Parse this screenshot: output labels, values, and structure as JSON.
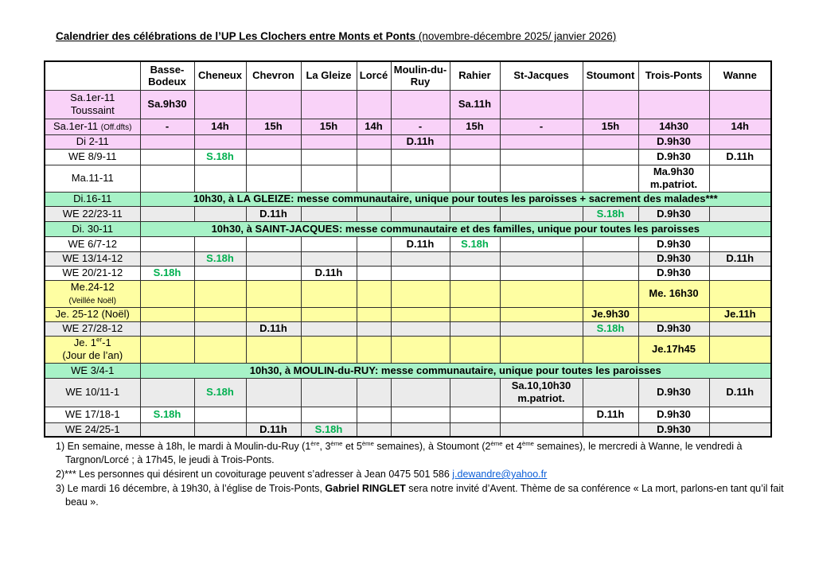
{
  "title": {
    "bold": "Calendrier des célébrations de l’UP Les Clochers entre Monts et Ponts",
    "tail": " (novembre-décembre 2025/ janvier 2026)"
  },
  "colors": {
    "pink": "#F9D2F8",
    "green_row": "#A7F2C7",
    "yellow": "#FEFEA2",
    "gray": "#EBEBEB",
    "green_text": "#00B050",
    "link": "#0B5ED7"
  },
  "table": {
    "columns": [
      "",
      "Basse-Bodeux",
      "Cheneux",
      "Chevron",
      "La Gleize",
      "Lorcé",
      "Moulin-du-Ruy",
      "Rahier",
      "St-Jacques",
      "Stoumont",
      "Trois-Ponts",
      "Wanne"
    ],
    "rows": [
      {
        "type": "pink",
        "label": [
          {
            "t": "Sa.1er-11"
          },
          {
            "t": "Toussaint",
            "br": true
          }
        ],
        "cells": [
          {
            "t": "Sa.9h30"
          },
          "",
          "",
          "",
          "",
          "",
          {
            "t": "Sa.11h"
          },
          "",
          "",
          "",
          ""
        ]
      },
      {
        "type": "pink",
        "label": [
          {
            "t": "Sa.1er-11 "
          },
          {
            "t": "(Off.dfts)",
            "small": true
          }
        ],
        "cells": [
          {
            "t": "-"
          },
          {
            "t": "14h"
          },
          {
            "t": "15h"
          },
          {
            "t": "15h"
          },
          {
            "t": "14h"
          },
          {
            "t": "-"
          },
          {
            "t": "15h"
          },
          {
            "t": "-"
          },
          {
            "t": "15h"
          },
          {
            "t": "14h30"
          },
          {
            "t": "14h"
          }
        ]
      },
      {
        "type": "pink",
        "label": [
          {
            "t": "Di 2-11"
          }
        ],
        "cells": [
          "",
          "",
          "",
          "",
          "",
          {
            "t": "D.11h"
          },
          "",
          "",
          "",
          {
            "t": "D.9h30"
          },
          ""
        ]
      },
      {
        "type": "white",
        "label": [
          {
            "t": "WE 8/9-11"
          }
        ],
        "cells": [
          "",
          {
            "t": "S.18h",
            "green": true
          },
          "",
          "",
          "",
          "",
          "",
          "",
          "",
          {
            "t": "D.9h30"
          },
          {
            "t": "D.11h"
          }
        ]
      },
      {
        "type": "white",
        "label": [
          {
            "t": "Ma.11-11"
          }
        ],
        "cells": [
          "",
          "",
          "",
          "",
          "",
          "",
          "",
          "",
          "",
          {
            "t": "Ma.9h30\nm.patriot."
          },
          ""
        ]
      },
      {
        "type": "green",
        "label": [
          {
            "t": "Di.16-11"
          }
        ],
        "merged": "10h30, à LA GLEIZE: messe communautaire, unique pour toutes les paroisses + sacrement des malades***"
      },
      {
        "type": "gray",
        "label": [
          {
            "t": "WE 22/23-11"
          }
        ],
        "cells": [
          "",
          "",
          {
            "t": "D.11h"
          },
          "",
          "",
          "",
          "",
          "",
          {
            "t": "S.18h",
            "green": true
          },
          {
            "t": "D.9h30"
          },
          ""
        ]
      },
      {
        "type": "green",
        "label": [
          {
            "t": "Di. 30-11"
          }
        ],
        "merged": "10h30, à SAINT-JACQUES: messe communautaire et des familles, unique pour toutes les paroisses"
      },
      {
        "type": "white",
        "label": [
          {
            "t": "WE 6/7-12"
          }
        ],
        "cells": [
          "",
          "",
          "",
          "",
          "",
          {
            "t": "D.11h"
          },
          {
            "t": "S.18h",
            "green": true
          },
          "",
          "",
          {
            "t": "D.9h30"
          },
          ""
        ]
      },
      {
        "type": "gray",
        "label": [
          {
            "t": "WE 13/14-12"
          }
        ],
        "cells": [
          "",
          {
            "t": "S.18h",
            "green": true
          },
          "",
          "",
          "",
          "",
          "",
          "",
          "",
          {
            "t": "D.9h30"
          },
          {
            "t": "D.11h"
          }
        ]
      },
      {
        "type": "white",
        "label": [
          {
            "t": "WE 20/21-12"
          }
        ],
        "cells": [
          {
            "t": "S.18h",
            "green": true
          },
          "",
          "",
          {
            "t": "D.11h"
          },
          "",
          "",
          "",
          "",
          "",
          {
            "t": "D.9h30"
          },
          ""
        ]
      },
      {
        "type": "yellow",
        "label": [
          {
            "t": "Me.24-12"
          },
          {
            "t": "(Veillée Noël)",
            "br": true,
            "small": true
          }
        ],
        "cells": [
          "",
          "",
          "",
          "",
          "",
          "",
          "",
          "",
          "",
          {
            "t": "Me. 16h30"
          },
          ""
        ]
      },
      {
        "type": "yellow",
        "label": [
          {
            "t": "Je. 25-12 (Noël)"
          }
        ],
        "cells": [
          "",
          "",
          "",
          "",
          "",
          "",
          "",
          "",
          {
            "t": "Je.9h30"
          },
          "",
          {
            "t": "Je.11h"
          }
        ]
      },
      {
        "type": "gray",
        "label": [
          {
            "t": "WE 27/28-12"
          }
        ],
        "cells": [
          "",
          "",
          {
            "t": "D.11h"
          },
          "",
          "",
          "",
          "",
          "",
          {
            "t": "S.18h",
            "green": true
          },
          {
            "t": "D.9h30"
          },
          ""
        ]
      },
      {
        "type": "yellow",
        "label": [
          {
            "t": "Je. 1"
          },
          {
            "t": "er",
            "sup": true
          },
          {
            "t": "-1"
          },
          {
            "t": "(Jour de l’an)",
            "br": true
          }
        ],
        "cells": [
          "",
          "",
          "",
          "",
          "",
          "",
          "",
          "",
          "",
          {
            "t": "Je.17h45"
          },
          ""
        ]
      },
      {
        "type": "green",
        "label": [
          {
            "t": "WE 3/4-1"
          }
        ],
        "merged": "10h30, à MOULIN-du-RUY: messe communautaire, unique pour toutes les paroisses"
      },
      {
        "type": "gray",
        "label": [
          {
            "t": "WE 10/11-1"
          }
        ],
        "cells": [
          "",
          {
            "t": "S.18h",
            "green": true
          },
          "",
          "",
          "",
          "",
          "",
          {
            "t": "Sa.10,10h30\nm.patriot."
          },
          "",
          {
            "t": "D.9h30"
          },
          {
            "t": "D.11h"
          }
        ]
      },
      {
        "type": "white",
        "label": [
          {
            "t": "WE 17/18-1"
          }
        ],
        "cells": [
          {
            "t": "S.18h",
            "green": true
          },
          "",
          "",
          "",
          "",
          "",
          "",
          "",
          {
            "t": "D.11h"
          },
          {
            "t": "D.9h30"
          },
          ""
        ]
      },
      {
        "type": "gray",
        "label": [
          {
            "t": "WE 24/25-1"
          }
        ],
        "cells": [
          "",
          "",
          {
            "t": "D.11h"
          },
          {
            "t": "S.18h",
            "green": true
          },
          "",
          "",
          "",
          "",
          "",
          {
            "t": "D.9h30"
          },
          ""
        ]
      }
    ]
  },
  "footnotes": [
    [
      {
        "t": "1) En semaine, messe à 18h, le mardi à Moulin-du-Ruy (1"
      },
      {
        "t": "ère",
        "sup": true
      },
      {
        "t": ", 3"
      },
      {
        "t": "ème",
        "sup": true
      },
      {
        "t": " et 5"
      },
      {
        "t": "ème",
        "sup": true
      },
      {
        "t": " semaines), à Stoumont (2"
      },
      {
        "t": "ème",
        "sup": true
      },
      {
        "t": " et 4"
      },
      {
        "t": "ème",
        "sup": true
      },
      {
        "t": " semaines), le mercredi à Wanne, le vendredi à Targnon/Lorcé ; à 17h45, le jeudi à Trois-Ponts."
      }
    ],
    [
      {
        "t": "2)*** Les personnes qui désirent un covoiturage peuvent s’adresser à Jean  0475 501 586  "
      },
      {
        "t": "j.dewandre@yahoo.fr",
        "link": true
      }
    ],
    [
      {
        "t": "3) Le mardi 16 décembre, à 19h30, à l’église de Trois-Ponts, "
      },
      {
        "t": "Gabriel RINGLET",
        "bold": true
      },
      {
        "t": " sera notre invité d’Avent. Thème de sa conférence « La mort, parlons-en tant qu’il fait beau »."
      }
    ]
  ]
}
